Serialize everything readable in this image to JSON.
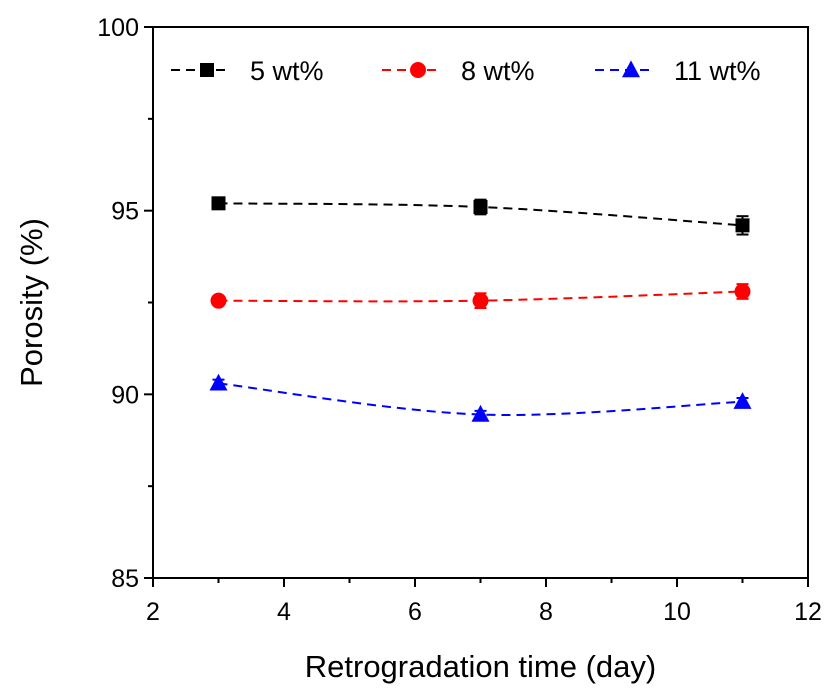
{
  "chart_data": {
    "type": "line",
    "title": "",
    "xlabel": "Retrogradation time (day)",
    "ylabel": "Porosity (%)",
    "xlim": [
      2,
      12
    ],
    "ylim": [
      85,
      100
    ],
    "xticks": [
      2,
      4,
      6,
      8,
      10,
      12
    ],
    "yticks": [
      85,
      90,
      95,
      100
    ],
    "x": [
      3,
      7,
      11
    ],
    "legend_position": "top",
    "grid": false,
    "series": [
      {
        "name": "5 wt%",
        "color": "#000000",
        "marker": "square",
        "values": [
          95.2,
          95.1,
          94.6
        ],
        "errors": [
          0.1,
          0.2,
          0.25
        ]
      },
      {
        "name": "8 wt%",
        "color": "#ff0000",
        "marker": "circle",
        "values": [
          92.55,
          92.55,
          92.8
        ],
        "errors": [
          0.1,
          0.2,
          0.2
        ]
      },
      {
        "name": "11 wt%",
        "color": "#0000ff",
        "marker": "triangle",
        "values": [
          90.3,
          89.45,
          89.8
        ],
        "errors": [
          0.1,
          0.1,
          0.1
        ]
      }
    ]
  }
}
